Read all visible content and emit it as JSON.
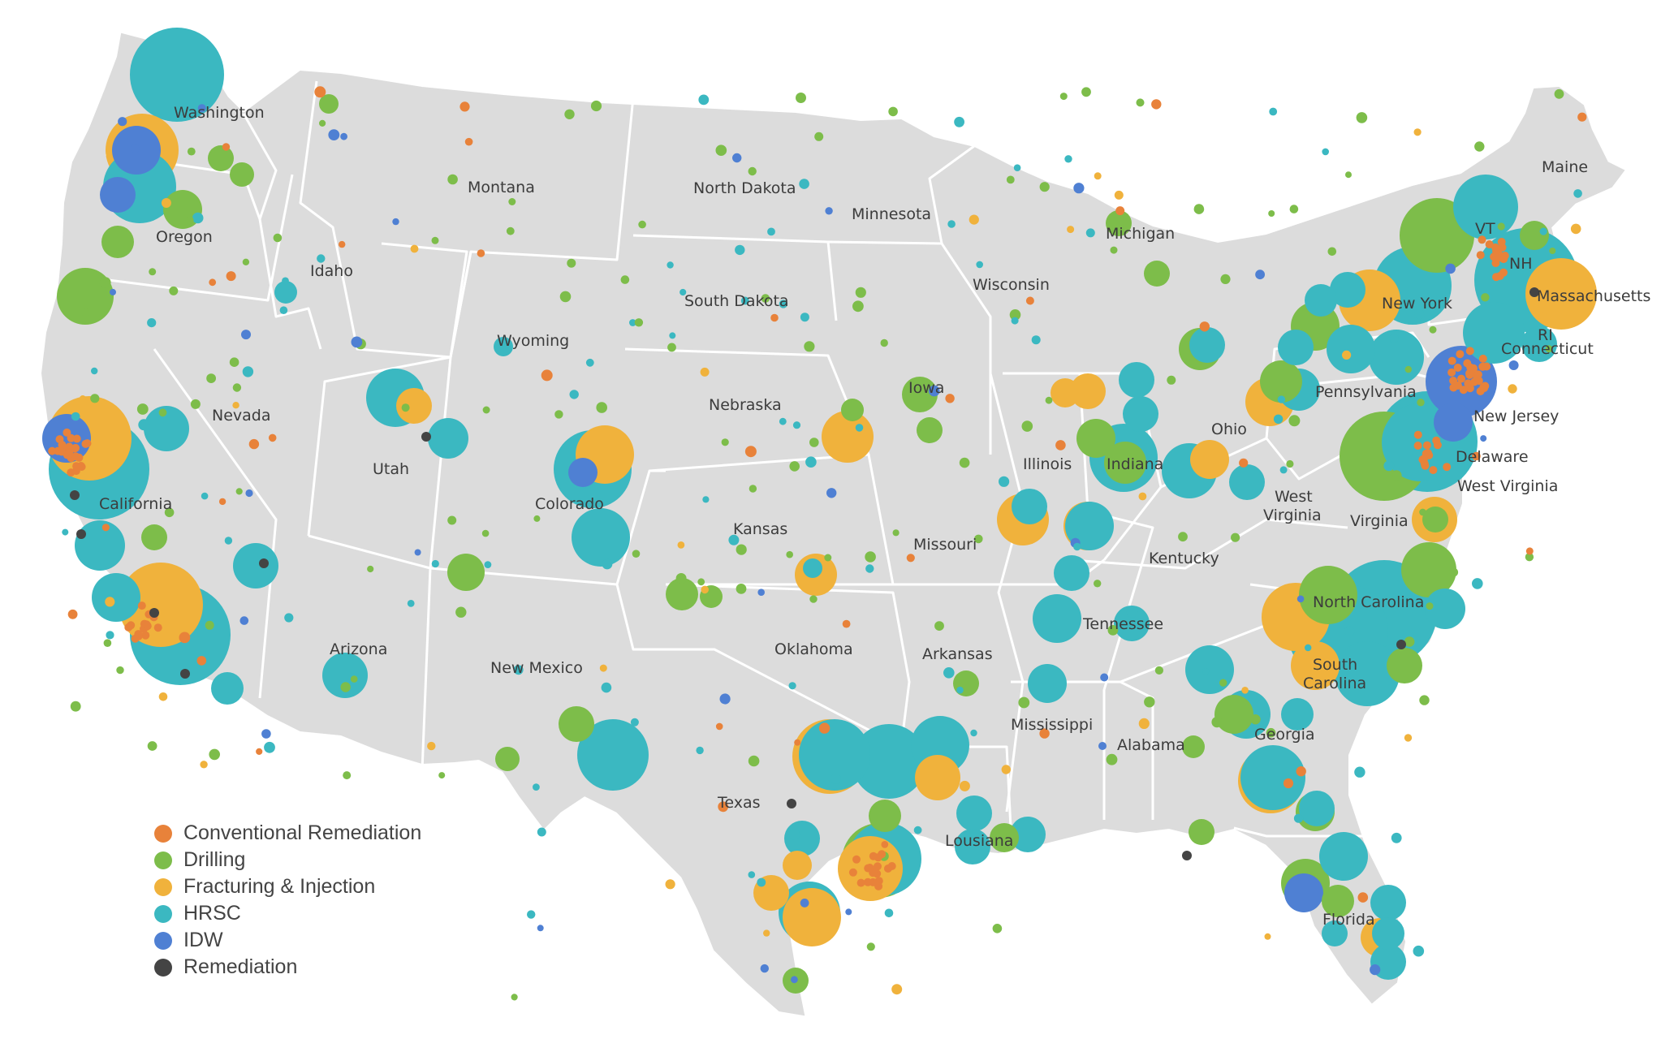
{
  "categories": [
    {
      "key": "conventional",
      "label": "Conventional Remediation",
      "color": "#e8823a"
    },
    {
      "key": "drilling",
      "label": "Drilling",
      "color": "#7dbd4a"
    },
    {
      "key": "fracturing",
      "label": "Fracturing & Injection",
      "color": "#f0b23c"
    },
    {
      "key": "hrsc",
      "label": "HRSC",
      "color": "#3bb8c1"
    },
    {
      "key": "idw",
      "label": "IDW",
      "color": "#4f80d3"
    },
    {
      "key": "remediation",
      "label": "Remediation",
      "color": "#444444"
    }
  ],
  "state_labels": [
    "Washington",
    "Oregon",
    "Idaho",
    "Montana",
    "North Dakota",
    "Minnesota",
    "Michigan",
    "Maine",
    "VT",
    "NH",
    "Massachusetts",
    "RI",
    "Connecticut",
    "New York",
    "Wisconsin",
    "South Dakota",
    "Wyoming",
    "Iowa",
    "Pennsylvania",
    "New Jersey",
    "Nebraska",
    "Nevada",
    "Utah",
    "Colorado",
    "Illinois",
    "Indiana",
    "Ohio",
    "Delaware",
    "West Virginia",
    "California",
    "Kansas",
    "Missouri",
    "Kentucky",
    "West Virginia",
    "Virginia",
    "North Carolina",
    "Tennessee",
    "Oklahoma",
    "Arkansas",
    "Arizona",
    "New Mexico",
    "South Carolina",
    "Mississippi",
    "Alabama",
    "Georgia",
    "Texas",
    "Lousiana",
    "Florida"
  ],
  "map_colors": {
    "land": "#dcdcdc",
    "border": "#ffffff"
  }
}
